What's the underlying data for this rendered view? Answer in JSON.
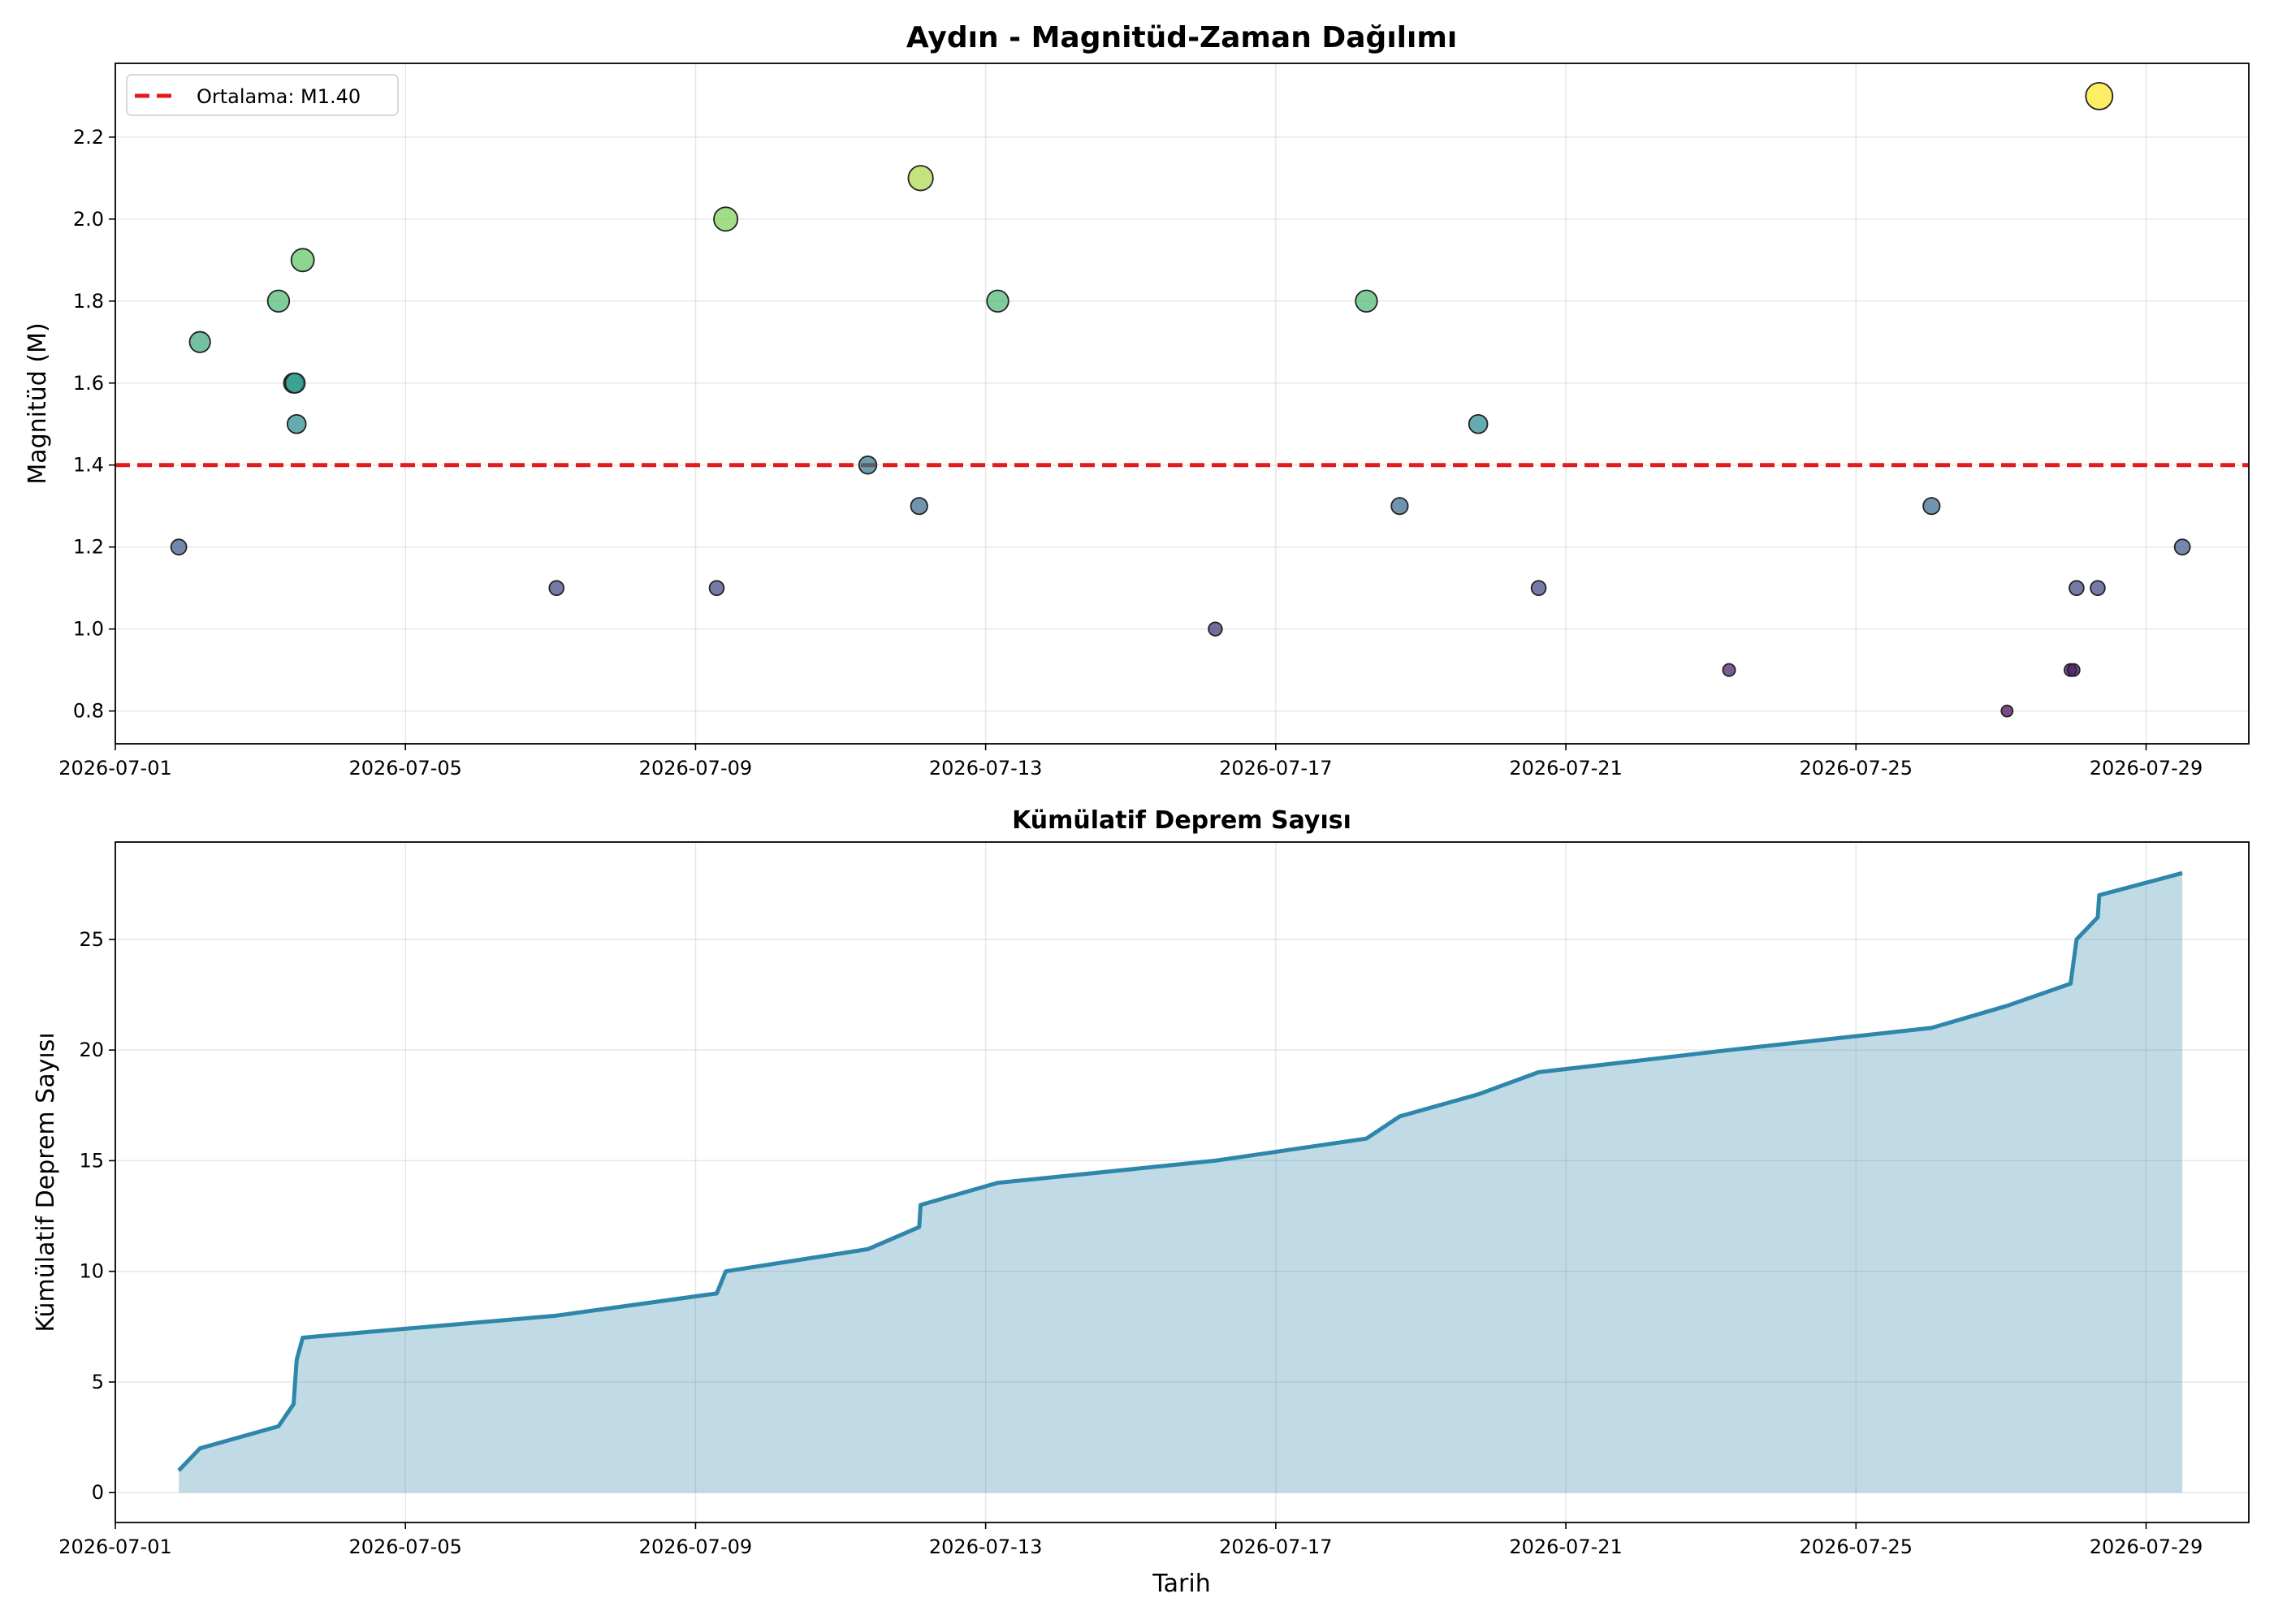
{
  "chart_data": [
    {
      "type": "scatter",
      "title": "Aydın - Magnitüd-Zaman Dağılımı",
      "xlabel": "",
      "ylabel": "Magnitüd (M)",
      "xlim": [
        "2026-07-01T00:00",
        "2026-07-30T10:00"
      ],
      "ylim": [
        0.72,
        2.38
      ],
      "x_ticks": [
        "2026-07-01",
        "2026-07-05",
        "2026-07-09",
        "2026-07-13",
        "2026-07-17",
        "2026-07-21",
        "2026-07-25",
        "2026-07-29"
      ],
      "y_ticks": [
        "0.8",
        "1.0",
        "1.2",
        "1.4",
        "1.6",
        "1.8",
        "2.0",
        "2.2"
      ],
      "grid": true,
      "colormap": "viridis",
      "mean_line": {
        "value": 1.4,
        "label": "Ortalama: M1.40",
        "color": "#e41a1c"
      },
      "legend": {
        "position": "top-left"
      },
      "points": [
        {
          "t": "2026-07-01T21:00",
          "m": 1.2
        },
        {
          "t": "2026-07-02T04:00",
          "m": 1.7
        },
        {
          "t": "2026-07-03T06:00",
          "m": 1.8
        },
        {
          "t": "2026-07-03T11:00",
          "m": 1.6
        },
        {
          "t": "2026-07-03T11:30",
          "m": 1.6
        },
        {
          "t": "2026-07-03T12:00",
          "m": 1.5
        },
        {
          "t": "2026-07-03T14:00",
          "m": 1.9
        },
        {
          "t": "2026-07-07T02:00",
          "m": 1.1
        },
        {
          "t": "2026-07-09T07:00",
          "m": 1.1
        },
        {
          "t": "2026-07-09T10:00",
          "m": 2.0
        },
        {
          "t": "2026-07-11T09:00",
          "m": 1.4
        },
        {
          "t": "2026-07-12T02:00",
          "m": 1.3
        },
        {
          "t": "2026-07-12T02:30",
          "m": 2.1
        },
        {
          "t": "2026-07-13T04:00",
          "m": 1.8
        },
        {
          "t": "2026-07-16T04:00",
          "m": 1.0
        },
        {
          "t": "2026-07-18T06:00",
          "m": 1.8
        },
        {
          "t": "2026-07-18T17:00",
          "m": 1.3
        },
        {
          "t": "2026-07-19T19:00",
          "m": 1.5
        },
        {
          "t": "2026-07-20T15:00",
          "m": 1.1
        },
        {
          "t": "2026-07-23T06:00",
          "m": 0.9
        },
        {
          "t": "2026-07-26T01:00",
          "m": 1.3
        },
        {
          "t": "2026-07-27T02:00",
          "m": 0.8
        },
        {
          "t": "2026-07-27T23:00",
          "m": 0.9
        },
        {
          "t": "2026-07-28T00:00",
          "m": 0.9
        },
        {
          "t": "2026-07-28T01:00",
          "m": 1.1
        },
        {
          "t": "2026-07-28T08:00",
          "m": 1.1
        },
        {
          "t": "2026-07-28T08:30",
          "m": 2.3
        },
        {
          "t": "2026-07-29T12:00",
          "m": 1.2
        }
      ]
    },
    {
      "type": "area",
      "title": "Kümülatif Deprem Sayısı",
      "xlabel": "Tarih",
      "ylabel": "Kümülatif Deprem Sayısı",
      "xlim": [
        "2026-07-01T00:00",
        "2026-07-30T10:00"
      ],
      "ylim": [
        -1.35,
        29.4
      ],
      "x_ticks": [
        "2026-07-01",
        "2026-07-05",
        "2026-07-09",
        "2026-07-13",
        "2026-07-17",
        "2026-07-21",
        "2026-07-25",
        "2026-07-29"
      ],
      "y_ticks": [
        "0",
        "5",
        "10",
        "15",
        "20",
        "25"
      ],
      "grid": true,
      "line_color": "#2e86ab",
      "fill_color": "#2e86ab",
      "series": [
        {
          "t": "2026-07-01T21:00",
          "n": 1
        },
        {
          "t": "2026-07-02T04:00",
          "n": 2
        },
        {
          "t": "2026-07-03T06:00",
          "n": 3
        },
        {
          "t": "2026-07-03T11:00",
          "n": 4
        },
        {
          "t": "2026-07-03T11:30",
          "n": 5
        },
        {
          "t": "2026-07-03T12:00",
          "n": 6
        },
        {
          "t": "2026-07-03T14:00",
          "n": 7
        },
        {
          "t": "2026-07-07T02:00",
          "n": 8
        },
        {
          "t": "2026-07-09T07:00",
          "n": 9
        },
        {
          "t": "2026-07-09T10:00",
          "n": 10
        },
        {
          "t": "2026-07-11T09:00",
          "n": 11
        },
        {
          "t": "2026-07-12T02:00",
          "n": 12
        },
        {
          "t": "2026-07-12T02:30",
          "n": 13
        },
        {
          "t": "2026-07-13T04:00",
          "n": 14
        },
        {
          "t": "2026-07-16T04:00",
          "n": 15
        },
        {
          "t": "2026-07-18T06:00",
          "n": 16
        },
        {
          "t": "2026-07-18T17:00",
          "n": 17
        },
        {
          "t": "2026-07-19T19:00",
          "n": 18
        },
        {
          "t": "2026-07-20T15:00",
          "n": 19
        },
        {
          "t": "2026-07-23T06:00",
          "n": 20
        },
        {
          "t": "2026-07-26T01:00",
          "n": 21
        },
        {
          "t": "2026-07-27T02:00",
          "n": 22
        },
        {
          "t": "2026-07-27T23:00",
          "n": 23
        },
        {
          "t": "2026-07-28T00:00",
          "n": 24
        },
        {
          "t": "2026-07-28T01:00",
          "n": 25
        },
        {
          "t": "2026-07-28T08:00",
          "n": 26
        },
        {
          "t": "2026-07-28T08:30",
          "n": 27
        },
        {
          "t": "2026-07-29T12:00",
          "n": 28
        }
      ]
    }
  ]
}
